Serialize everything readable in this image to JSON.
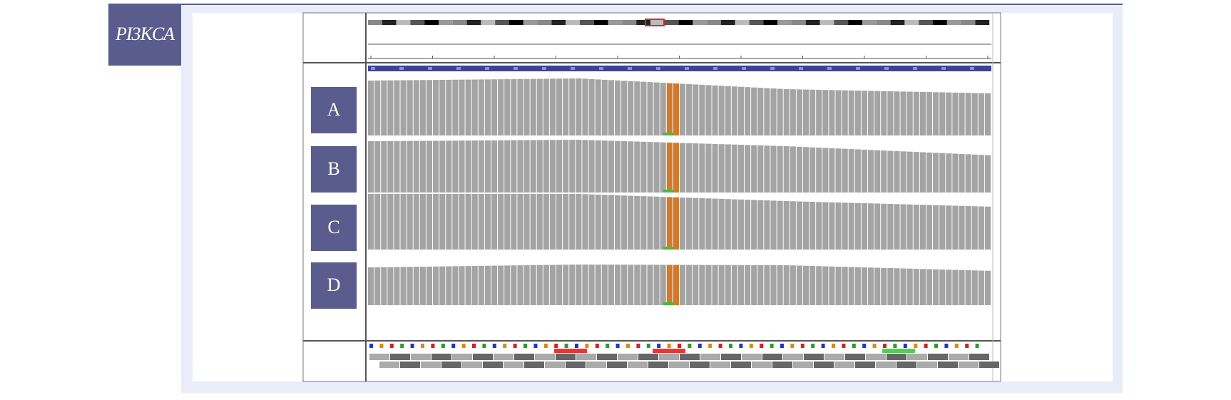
{
  "label": "PI3KCA",
  "tracks": [
    {
      "label": "A"
    },
    {
      "label": "B"
    },
    {
      "label": "C"
    },
    {
      "label": "D"
    }
  ]
}
